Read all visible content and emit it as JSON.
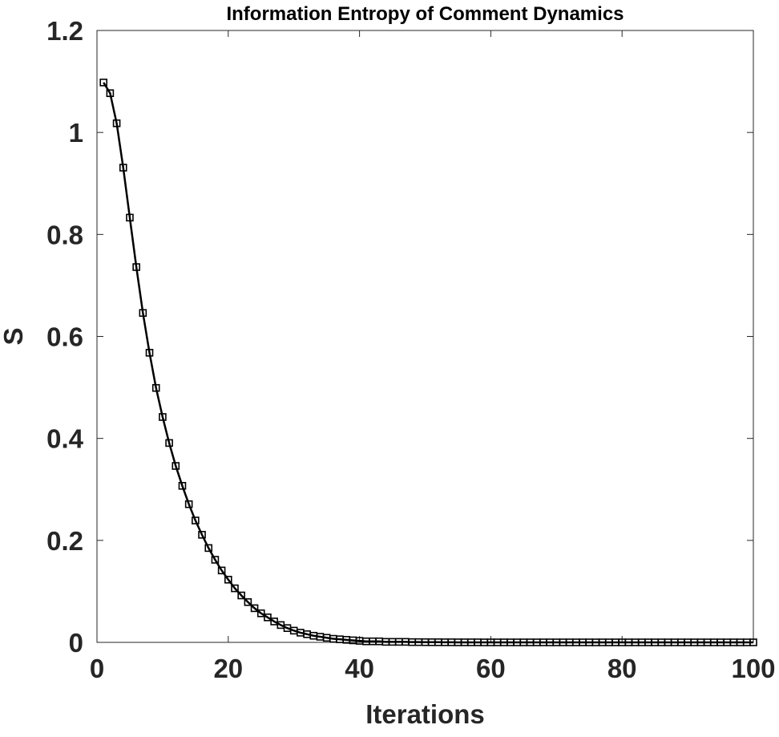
{
  "chart_data": {
    "type": "line",
    "title": "Information Entropy of Comment Dynamics",
    "xlabel": "Iterations",
    "ylabel": "S",
    "xlim": [
      0,
      100
    ],
    "ylim": [
      0,
      1.2
    ],
    "xticks": [
      "0",
      "20",
      "40",
      "60",
      "80",
      "100"
    ],
    "yticks": [
      "0",
      "0.2",
      "0.4",
      "0.6",
      "0.8",
      "1",
      "1.2"
    ],
    "grid": false,
    "line_color": "#000000",
    "marker": "square",
    "series": [
      {
        "x": [
          1,
          2,
          3,
          4,
          5,
          6,
          7,
          8,
          9,
          10,
          11,
          12,
          13,
          14,
          15,
          16,
          17,
          18,
          19,
          20,
          21,
          22,
          23,
          24,
          25,
          26,
          27,
          28,
          29,
          30,
          31,
          32,
          33,
          34,
          35,
          36,
          37,
          38,
          39,
          40,
          41,
          42,
          43,
          44,
          45,
          46,
          47,
          48,
          49,
          50,
          51,
          52,
          53,
          54,
          55,
          56,
          57,
          58,
          59,
          60,
          61,
          62,
          63,
          64,
          65,
          66,
          67,
          68,
          69,
          70,
          71,
          72,
          73,
          74,
          75,
          76,
          77,
          78,
          79,
          80,
          81,
          82,
          83,
          84,
          85,
          86,
          87,
          88,
          89,
          90,
          91,
          92,
          93,
          94,
          95,
          96,
          97,
          98,
          99,
          100
        ],
        "y": [
          1.098,
          1.077,
          1.018,
          0.931,
          0.833,
          0.736,
          0.646,
          0.568,
          0.499,
          0.442,
          0.391,
          0.346,
          0.307,
          0.271,
          0.239,
          0.211,
          0.185,
          0.162,
          0.141,
          0.123,
          0.106,
          0.092,
          0.079,
          0.067,
          0.057,
          0.049,
          0.041,
          0.034,
          0.028,
          0.023,
          0.019,
          0.016,
          0.013,
          0.011,
          0.009,
          0.007,
          0.006,
          0.005,
          0.004,
          0.003,
          0.002,
          0.002,
          0.002,
          0.001,
          0.001,
          0.001,
          0.001,
          0.0005,
          0.0005,
          0.0004,
          0.0003,
          0.0003,
          0.0002,
          0.0002,
          0.0001,
          0.0001,
          0.0001,
          0.0001,
          0,
          0,
          0,
          0,
          0,
          0,
          0,
          0,
          0,
          0,
          0,
          0,
          0,
          0,
          0,
          0,
          0,
          0,
          0,
          0,
          0,
          0,
          0,
          0,
          0,
          0,
          0,
          0,
          0,
          0,
          0,
          0,
          0,
          0,
          0,
          0,
          0,
          0,
          0,
          0,
          0,
          0
        ]
      }
    ]
  }
}
